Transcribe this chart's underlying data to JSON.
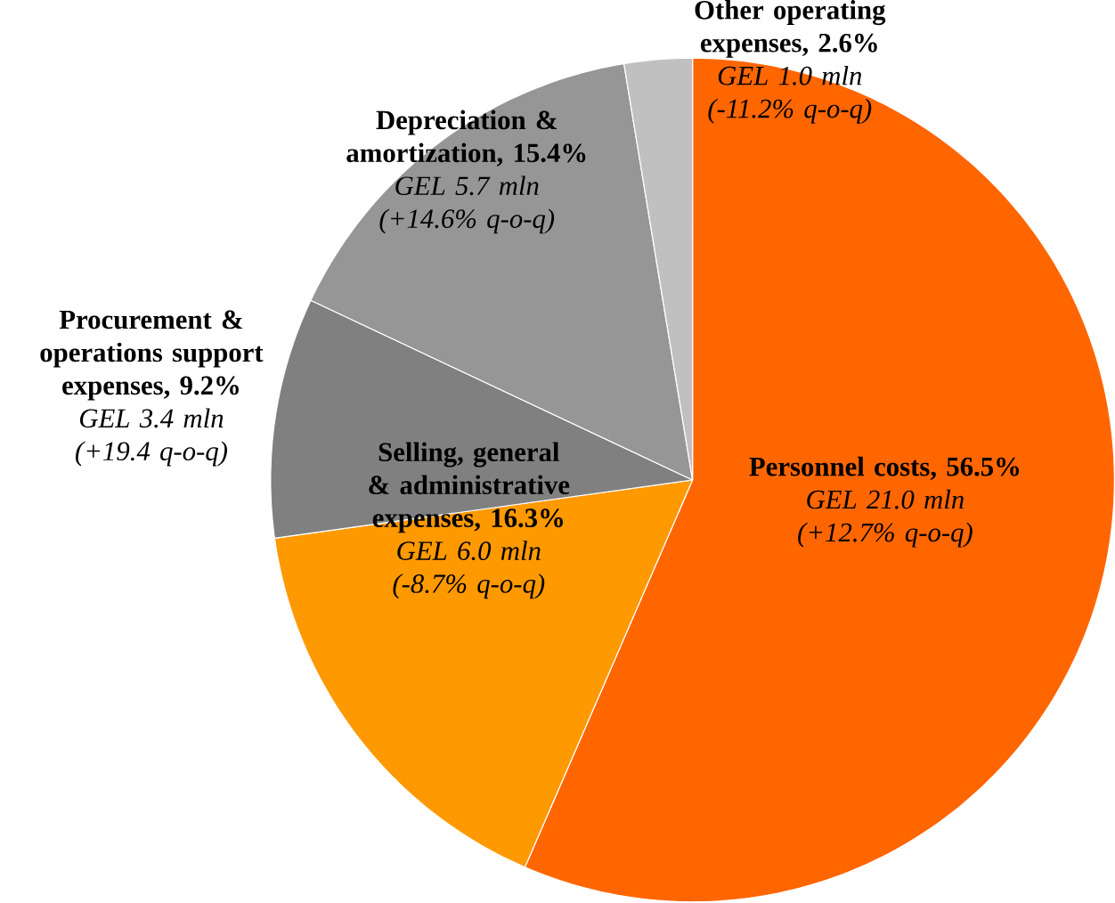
{
  "chart_data": {
    "type": "pie",
    "categories": [
      "Personnel costs",
      "Selling, general & administrative expenses",
      "Procurement & operations support expenses",
      "Depreciation & amortization",
      "Other operating expenses"
    ],
    "values": [
      56.5,
      16.3,
      9.2,
      15.4,
      2.6
    ],
    "colors": [
      "#ff6600",
      "#ff9900",
      "#808080",
      "#969696",
      "#c0c0c0"
    ],
    "value_labels": [
      ", 56.5%",
      ", 16.3%",
      ", 9.2%",
      ", 15.4%",
      ", 2.6%"
    ],
    "annotations": [
      "GEL 21.0 mln",
      "(+12.7% q-o-q)",
      "GEL 6.0 mln",
      "(-8.7% q-o-q)",
      "GEL 3.4 mln",
      "(+19.4 q-o-q)",
      "GEL 5.7 mln",
      "(+14.6% q-o-q)",
      "GEL 1.0 mln",
      "(-11.2% q-o-q)"
    ]
  }
}
